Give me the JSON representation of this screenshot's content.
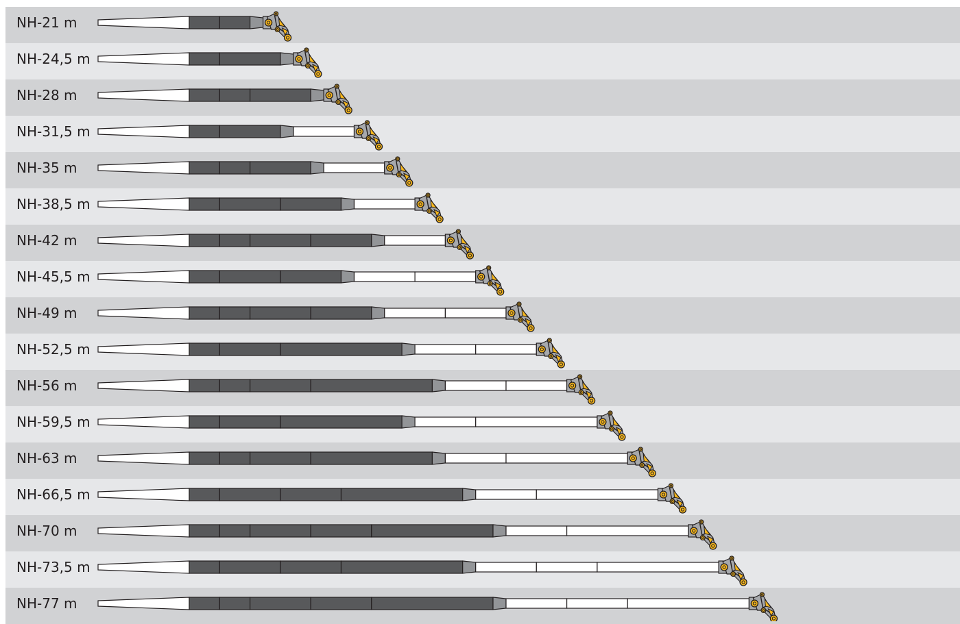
{
  "colors": {
    "row_dark": "#d1d2d4",
    "row_light": "#e6e7e9",
    "base_section": "#ffffff",
    "main_section": "#58595b",
    "transition_section": "#939598",
    "extension_section": "#ffffff",
    "head_fitting": "#a7a9ac",
    "sheave": "#f7b71d",
    "outline": "#231f20"
  },
  "icons": {
    "boom_head": "boom-head-sheave-icon"
  },
  "boom_configurations": [
    {
      "label": "NH-21 m",
      "main_segments": [
        1,
        1
      ],
      "extension_segments": []
    },
    {
      "label": "NH-24,5 m",
      "main_segments": [
        1,
        2
      ],
      "extension_segments": []
    },
    {
      "label": "NH-28 m",
      "main_segments": [
        1,
        1,
        2
      ],
      "extension_segments": []
    },
    {
      "label": "NH-31,5 m",
      "main_segments": [
        1,
        2
      ],
      "extension_segments": [
        2
      ]
    },
    {
      "label": "NH-35 m",
      "main_segments": [
        1,
        1,
        2
      ],
      "extension_segments": [
        2
      ]
    },
    {
      "label": "NH-38,5 m",
      "main_segments": [
        1,
        2,
        2
      ],
      "extension_segments": [
        2
      ]
    },
    {
      "label": "NH-42 m",
      "main_segments": [
        1,
        1,
        2,
        2
      ],
      "extension_segments": [
        2
      ]
    },
    {
      "label": "NH-45,5 m",
      "main_segments": [
        1,
        2,
        2
      ],
      "extension_segments": [
        2,
        2
      ]
    },
    {
      "label": "NH-49 m",
      "main_segments": [
        1,
        1,
        2,
        2
      ],
      "extension_segments": [
        2,
        2
      ]
    },
    {
      "label": "NH-52,5 m",
      "main_segments": [
        1,
        2,
        4
      ],
      "extension_segments": [
        2,
        2
      ]
    },
    {
      "label": "NH-56 m",
      "main_segments": [
        1,
        1,
        2,
        4
      ],
      "extension_segments": [
        2,
        2
      ]
    },
    {
      "label": "NH-59,5 m",
      "main_segments": [
        1,
        2,
        4
      ],
      "extension_segments": [
        2,
        4
      ]
    },
    {
      "label": "NH-63 m",
      "main_segments": [
        1,
        1,
        2,
        4
      ],
      "extension_segments": [
        2,
        4
      ]
    },
    {
      "label": "NH-66,5 m",
      "main_segments": [
        1,
        2,
        2,
        4
      ],
      "extension_segments": [
        2,
        4
      ]
    },
    {
      "label": "NH-70 m",
      "main_segments": [
        1,
        1,
        2,
        2,
        4
      ],
      "extension_segments": [
        2,
        4
      ]
    },
    {
      "label": "NH-73,5 m",
      "main_segments": [
        1,
        2,
        2,
        4
      ],
      "extension_segments": [
        2,
        2,
        4
      ]
    },
    {
      "label": "NH-77 m",
      "main_segments": [
        1,
        1,
        2,
        2,
        4
      ],
      "extension_segments": [
        2,
        2,
        4
      ]
    }
  ]
}
